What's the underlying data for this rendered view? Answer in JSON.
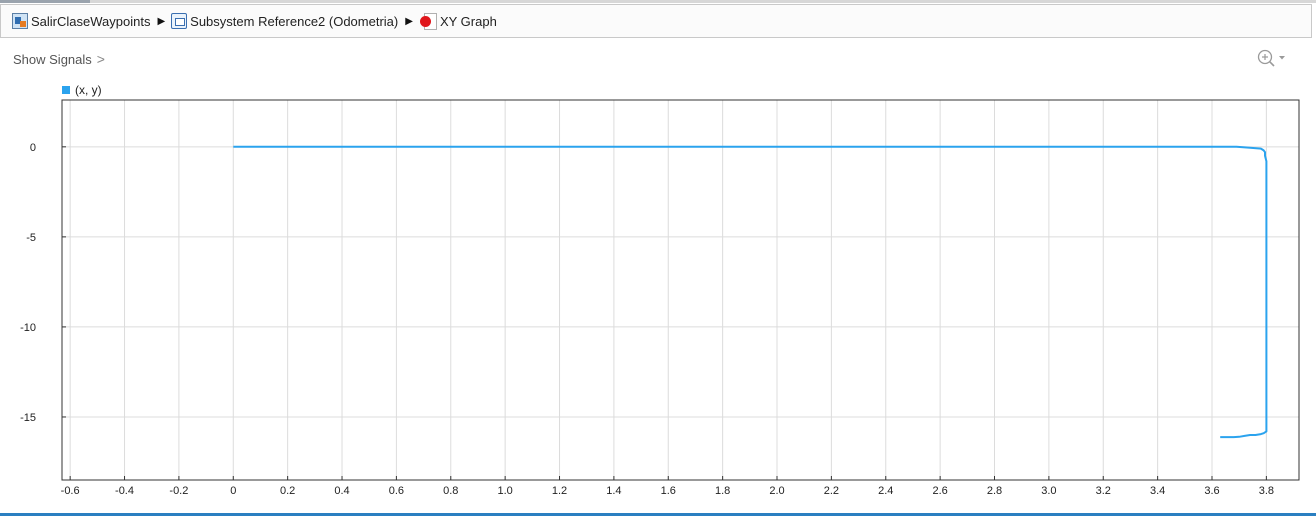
{
  "breadcrumb": {
    "items": [
      {
        "label": "SalirClaseWaypoints",
        "icon": "simulink-model-icon"
      },
      {
        "label": "Subsystem Reference2 (Odometria)",
        "icon": "subsystem-reference-icon"
      },
      {
        "label": "XY Graph",
        "icon": "xy-graph-block-icon"
      }
    ]
  },
  "toolbar": {
    "show_signals_label": "Show Signals",
    "show_signals_chevron": ">",
    "zoom_icon": "zoom-in-icon",
    "zoom_dropdown_icon": "dropdown-arrow-icon"
  },
  "colors": {
    "series": "#2ba3ee",
    "grid": "#dcdcdc",
    "axis": "#333333",
    "accent_bottom": "#2a7fc1"
  },
  "chart_data": {
    "type": "line",
    "title": "",
    "xlabel": "",
    "ylabel": "",
    "xlim": [
      -0.63,
      3.92
    ],
    "ylim": [
      -18.5,
      2.6
    ],
    "xticks": [
      -0.6,
      -0.4,
      -0.2,
      0,
      0.2,
      0.4,
      0.6,
      0.8,
      1.0,
      1.2,
      1.4,
      1.6,
      1.8,
      2.0,
      2.2,
      2.4,
      2.6,
      2.8,
      3.0,
      3.2,
      3.4,
      3.6,
      3.8
    ],
    "xtick_labels": [
      "-0.6",
      "-0.4",
      "-0.2",
      "0",
      "0.2",
      "0.4",
      "0.6",
      "0.8",
      "1.0",
      "1.2",
      "1.4",
      "1.6",
      "1.8",
      "2.0",
      "2.2",
      "2.4",
      "2.6",
      "2.8",
      "3.0",
      "3.2",
      "3.4",
      "3.6",
      "3.8"
    ],
    "yticks": [
      0,
      -5,
      -10,
      -15
    ],
    "ytick_labels": [
      "0",
      "-5",
      "-10",
      "-15"
    ],
    "grid": true,
    "legend_position": "top-left",
    "series": [
      {
        "name": "(x, y)",
        "x": [
          0,
          3.69,
          3.74,
          3.78,
          3.79,
          3.795,
          3.795,
          3.8,
          3.8,
          3.79,
          3.78,
          3.76,
          3.74,
          3.72,
          3.7,
          3.68,
          3.66,
          3.64,
          3.63
        ],
        "y": [
          0,
          0,
          -0.05,
          -0.1,
          -0.2,
          -0.3,
          -0.5,
          -0.8,
          -15.8,
          -15.9,
          -15.95,
          -16.0,
          -16.0,
          -16.05,
          -16.1,
          -16.12,
          -16.12,
          -16.12,
          -16.12
        ]
      }
    ]
  }
}
